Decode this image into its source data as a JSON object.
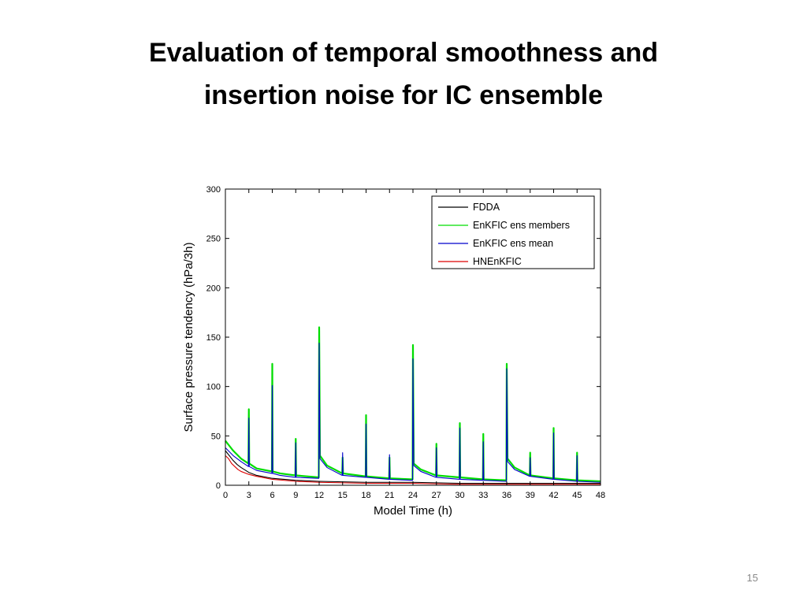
{
  "slide": {
    "title_line1": "Evaluation of temporal smoothness and",
    "title_line2": "insertion noise for IC ensemble",
    "page_number": "15"
  },
  "colors": {
    "fdda": "#000000",
    "members": "#00dd00",
    "mean": "#0000cc",
    "hnenkfic": "#dd0000"
  },
  "chart_data": {
    "type": "line",
    "xlabel": "Model Time (h)",
    "ylabel": "Surface pressure tendency (hPa/3h)",
    "xlim": [
      0,
      48
    ],
    "ylim": [
      0,
      300
    ],
    "xticks": [
      0,
      3,
      6,
      9,
      12,
      15,
      18,
      21,
      24,
      27,
      30,
      33,
      36,
      39,
      42,
      45,
      48
    ],
    "yticks": [
      0,
      50,
      100,
      150,
      200,
      250,
      300
    ],
    "grid": false,
    "legend_position": "top-right",
    "series": [
      {
        "name": "FDDA",
        "color": "#000000",
        "x": [
          0,
          0.5,
          1,
          1.5,
          2,
          3,
          4,
          6,
          9,
          12,
          18,
          24,
          30,
          36,
          42,
          48
        ],
        "y": [
          35,
          30,
          25,
          21,
          18,
          13,
          10,
          7,
          5,
          4,
          3,
          3,
          2,
          2,
          2,
          2
        ]
      },
      {
        "name": "EnKFIC ens members",
        "color": "#00dd00",
        "x": [
          0,
          0.5,
          1,
          2,
          2.95,
          3,
          3.05,
          4,
          5.95,
          6,
          6.05,
          7,
          8.95,
          9,
          9.05,
          11.95,
          12,
          12.1,
          13,
          14.95,
          15,
          15.05,
          17.95,
          18,
          18.05,
          20.95,
          21,
          21.05,
          23.95,
          24,
          24.1,
          25,
          26.95,
          27,
          27.05,
          29.95,
          30,
          30.05,
          32.95,
          33,
          33.05,
          35.95,
          36,
          36.1,
          37,
          38.95,
          39,
          39.05,
          41.95,
          42,
          42.05,
          44.95,
          45,
          45.05,
          48
        ],
        "y": [
          45,
          40,
          35,
          27,
          22,
          77,
          22,
          17,
          14,
          123,
          14,
          12,
          10,
          47,
          10,
          8,
          160,
          30,
          20,
          12,
          28,
          12,
          9,
          71,
          9,
          7,
          28,
          7,
          6,
          142,
          22,
          16,
          10,
          42,
          10,
          8,
          63,
          8,
          6,
          52,
          6,
          5,
          123,
          27,
          18,
          10,
          33,
          10,
          7,
          58,
          7,
          5,
          33,
          5,
          4
        ]
      },
      {
        "name": "EnKFIC ens mean",
        "color": "#0000cc",
        "x": [
          0,
          0.5,
          1,
          2,
          2.95,
          3,
          3.05,
          4,
          5.95,
          6,
          6.05,
          7,
          8.95,
          9,
          9.05,
          11.95,
          12,
          12.1,
          13,
          14.95,
          15,
          15.05,
          17.95,
          18,
          18.05,
          20.95,
          21,
          21.05,
          23.95,
          24,
          24.1,
          25,
          26.95,
          27,
          27.05,
          29.95,
          30,
          30.05,
          32.95,
          33,
          33.05,
          35.95,
          36,
          36.1,
          37,
          38.95,
          39,
          39.05,
          41.95,
          42,
          42.05,
          44.95,
          45,
          45.05,
          48
        ],
        "y": [
          38,
          34,
          30,
          24,
          19,
          68,
          19,
          15,
          12,
          101,
          12,
          10,
          8,
          43,
          8,
          7,
          144,
          27,
          18,
          10,
          33,
          10,
          8,
          62,
          8,
          6,
          31,
          6,
          5,
          128,
          20,
          14,
          8,
          38,
          8,
          6,
          58,
          6,
          5,
          44,
          5,
          4,
          118,
          24,
          16,
          9,
          28,
          9,
          6,
          53,
          6,
          4,
          30,
          4,
          3
        ]
      },
      {
        "name": "HNEnKFIC",
        "color": "#dd0000",
        "x": [
          0,
          0.4,
          0.8,
          1.2,
          1.6,
          2,
          3,
          4,
          6,
          9,
          12,
          18,
          24,
          30,
          36,
          42,
          48
        ],
        "y": [
          30,
          27,
          22,
          19,
          16,
          14,
          11,
          9,
          6,
          4,
          3,
          2,
          2,
          1,
          1,
          1,
          1
        ]
      }
    ]
  }
}
